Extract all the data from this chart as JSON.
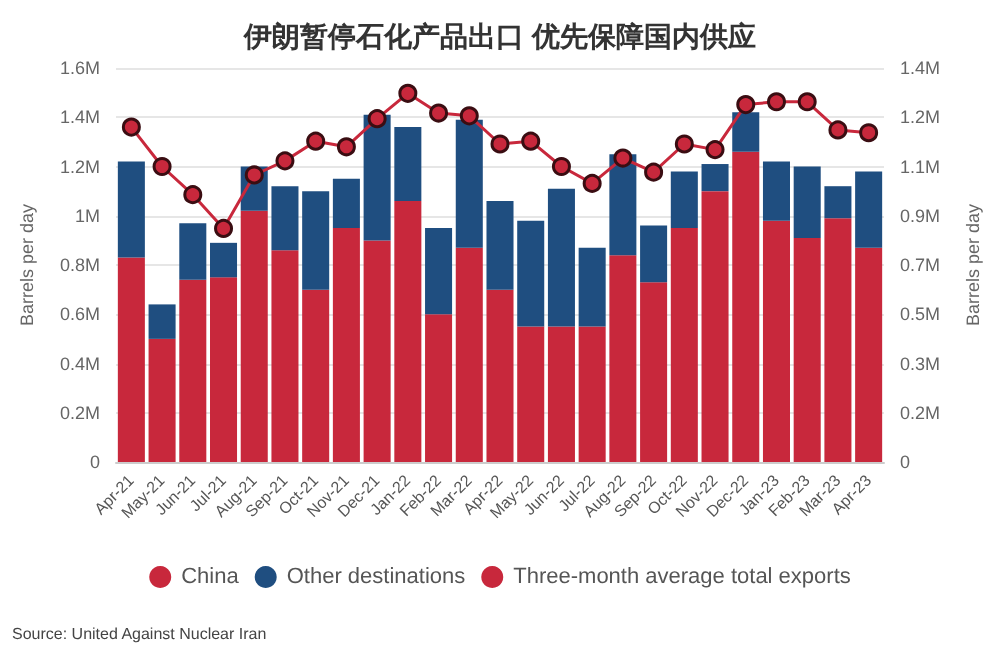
{
  "chart_data": {
    "type": "bar",
    "title": "伊朗暂停石化产品出口 优先保障国内供应",
    "stacked": true,
    "categories": [
      "Apr-21",
      "May-21",
      "Jun-21",
      "Jul-21",
      "Aug-21",
      "Sep-21",
      "Oct-21",
      "Nov-21",
      "Dec-21",
      "Jan-22",
      "Feb-22",
      "Mar-22",
      "Apr-22",
      "May-22",
      "Jun-22",
      "Jul-22",
      "Aug-22",
      "Sep-22",
      "Oct-22",
      "Nov-22",
      "Dec-22",
      "Jan-23",
      "Feb-23",
      "Mar-23",
      "Apr-23"
    ],
    "series": [
      {
        "name": "China",
        "color": "#c8283c",
        "values": [
          0.83,
          0.5,
          0.74,
          0.75,
          1.02,
          0.86,
          0.7,
          0.95,
          0.9,
          1.06,
          0.6,
          0.87,
          0.7,
          0.55,
          0.55,
          0.55,
          0.84,
          0.73,
          0.95,
          1.1,
          1.26,
          0.98,
          0.91,
          0.99,
          0.87
        ]
      },
      {
        "name": "Other destinations",
        "color": "#1f4e80",
        "values": [
          0.39,
          0.14,
          0.23,
          0.14,
          0.18,
          0.26,
          0.4,
          0.2,
          0.51,
          0.3,
          0.35,
          0.52,
          0.36,
          0.43,
          0.56,
          0.32,
          0.41,
          0.23,
          0.23,
          0.11,
          0.16,
          0.24,
          0.29,
          0.13,
          0.31
        ]
      },
      {
        "name": "Three-month average total exports",
        "type": "line",
        "axis": "y2",
        "color": "#c8283c",
        "values": [
          1.19,
          1.05,
          0.95,
          0.83,
          1.02,
          1.07,
          1.14,
          1.12,
          1.22,
          1.31,
          1.24,
          1.23,
          1.13,
          1.14,
          1.05,
          0.99,
          1.08,
          1.03,
          1.13,
          1.11,
          1.27,
          1.28,
          1.28,
          1.18,
          1.17
        ]
      }
    ],
    "ylabel": "Barrels per day",
    "y2label": "Barrels per day",
    "ylim": [
      0,
      1.6
    ],
    "yticks": [
      0,
      {
        "value": 0.2,
        "label": "0.2M"
      },
      {
        "value": 0.4,
        "label": "0.4M"
      },
      {
        "value": 0.6,
        "label": "0.6M"
      },
      {
        "value": 0.8,
        "label": "0.8M"
      },
      {
        "value": 1,
        "label": "1M"
      },
      {
        "value": 1.2,
        "label": "1.2M"
      },
      {
        "value": 1.4,
        "label": "1.4M"
      },
      {
        "value": 1.6,
        "label": "1.6M"
      }
    ],
    "y2lim": [
      0,
      1.4
    ],
    "y2ticks": [
      0,
      {
        "value": 0.175,
        "label": "0.2M"
      },
      {
        "value": 0.35,
        "label": "0.3M"
      },
      {
        "value": 0.525,
        "label": "0.5M"
      },
      {
        "value": 0.7,
        "label": "0.7M"
      },
      {
        "value": 0.875,
        "label": "0.9M"
      },
      {
        "value": 1.05,
        "label": "1.1M"
      },
      {
        "value": 1.225,
        "label": "1.2M"
      },
      {
        "value": 1.4,
        "label": "1.4M"
      }
    ],
    "grid": "y",
    "legend": "bottom",
    "marker": "circle",
    "annotations": [
      "Source: United Against Nuclear Iran"
    ]
  }
}
